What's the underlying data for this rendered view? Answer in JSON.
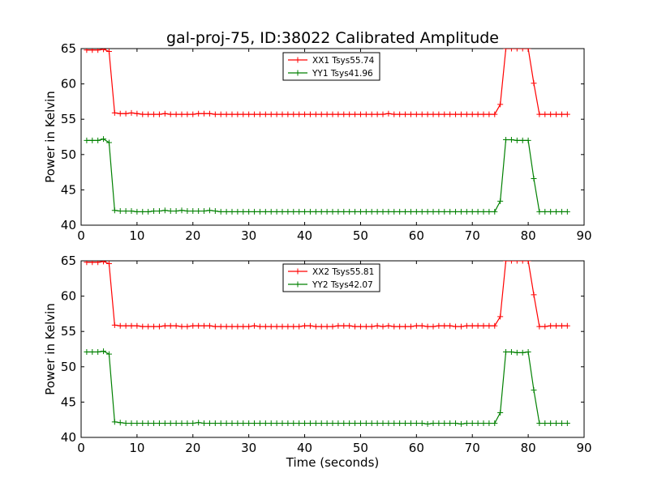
{
  "figure": {
    "title": "gal-proj-75, ID:38022 Calibrated Amplitude",
    "xlabel": "Time (seconds)"
  },
  "chart_data": [
    {
      "type": "line",
      "ylabel": "Power in Kelvin",
      "xlim": [
        0,
        90
      ],
      "ylim": [
        40,
        65
      ],
      "xticks": [
        0,
        10,
        20,
        30,
        40,
        50,
        60,
        70,
        80,
        90
      ],
      "yticks": [
        40,
        45,
        50,
        55,
        60,
        65
      ],
      "grid": false,
      "legend_position": "top-center",
      "x": [
        1,
        2,
        3,
        4,
        5,
        6,
        7,
        8,
        9,
        10,
        11,
        12,
        13,
        14,
        15,
        16,
        17,
        18,
        19,
        20,
        21,
        22,
        23,
        24,
        25,
        26,
        27,
        28,
        29,
        30,
        31,
        32,
        33,
        34,
        35,
        36,
        37,
        38,
        39,
        40,
        41,
        42,
        43,
        44,
        45,
        46,
        47,
        48,
        49,
        50,
        51,
        52,
        53,
        54,
        55,
        56,
        57,
        58,
        59,
        60,
        61,
        62,
        63,
        64,
        65,
        66,
        67,
        68,
        69,
        70,
        71,
        72,
        73,
        74,
        75,
        76,
        77,
        78,
        79,
        80,
        81,
        82,
        83,
        84,
        85,
        86,
        87
      ],
      "series": [
        {
          "name": "XX1 Tsys55.74",
          "color": "#ff0000",
          "values": [
            64.8,
            64.8,
            64.8,
            64.9,
            64.6,
            55.9,
            55.8,
            55.8,
            55.9,
            55.8,
            55.7,
            55.7,
            55.7,
            55.7,
            55.8,
            55.7,
            55.7,
            55.7,
            55.7,
            55.7,
            55.8,
            55.8,
            55.8,
            55.7,
            55.7,
            55.7,
            55.7,
            55.7,
            55.7,
            55.7,
            55.7,
            55.7,
            55.7,
            55.7,
            55.7,
            55.7,
            55.7,
            55.7,
            55.7,
            55.7,
            55.7,
            55.7,
            55.7,
            55.7,
            55.7,
            55.7,
            55.7,
            55.7,
            55.7,
            55.7,
            55.7,
            55.7,
            55.7,
            55.7,
            55.8,
            55.7,
            55.7,
            55.7,
            55.7,
            55.7,
            55.7,
            55.7,
            55.7,
            55.7,
            55.7,
            55.7,
            55.7,
            55.7,
            55.7,
            55.7,
            55.7,
            55.7,
            55.7,
            55.7,
            57.1,
            65.0,
            65.0,
            65.0,
            65.0,
            65.0,
            60.1,
            55.7,
            55.7,
            55.7,
            55.7,
            55.7,
            55.7
          ]
        },
        {
          "name": "YY1 Tsys41.96",
          "color": "#008000",
          "values": [
            52.0,
            52.0,
            52.0,
            52.2,
            51.7,
            42.1,
            42.0,
            42.0,
            42.0,
            41.9,
            41.9,
            41.9,
            42.0,
            42.0,
            42.1,
            42.0,
            42.0,
            42.1,
            42.0,
            42.0,
            42.0,
            42.0,
            42.1,
            42.0,
            41.9,
            41.9,
            41.9,
            41.9,
            41.9,
            41.9,
            41.9,
            41.9,
            41.9,
            41.9,
            41.9,
            41.9,
            41.9,
            41.9,
            41.9,
            41.9,
            41.9,
            41.9,
            41.9,
            41.9,
            41.9,
            41.9,
            41.9,
            41.9,
            41.9,
            41.9,
            41.9,
            41.9,
            41.9,
            41.9,
            41.9,
            41.9,
            41.9,
            41.9,
            41.9,
            41.9,
            41.9,
            41.9,
            41.9,
            41.9,
            41.9,
            41.9,
            41.9,
            41.9,
            41.9,
            41.9,
            41.9,
            41.9,
            41.9,
            41.9,
            43.4,
            52.1,
            52.1,
            52.0,
            52.0,
            52.0,
            46.6,
            41.9,
            41.9,
            41.9,
            41.9,
            41.9,
            41.9
          ]
        }
      ]
    },
    {
      "type": "line",
      "ylabel": "Power in Kelvin",
      "xlabel": "Time (seconds)",
      "xlim": [
        0,
        90
      ],
      "ylim": [
        40,
        65
      ],
      "xticks": [
        0,
        10,
        20,
        30,
        40,
        50,
        60,
        70,
        80,
        90
      ],
      "yticks": [
        40,
        45,
        50,
        55,
        60,
        65
      ],
      "grid": false,
      "legend_position": "top-center",
      "x": [
        1,
        2,
        3,
        4,
        5,
        6,
        7,
        8,
        9,
        10,
        11,
        12,
        13,
        14,
        15,
        16,
        17,
        18,
        19,
        20,
        21,
        22,
        23,
        24,
        25,
        26,
        27,
        28,
        29,
        30,
        31,
        32,
        33,
        34,
        35,
        36,
        37,
        38,
        39,
        40,
        41,
        42,
        43,
        44,
        45,
        46,
        47,
        48,
        49,
        50,
        51,
        52,
        53,
        54,
        55,
        56,
        57,
        58,
        59,
        60,
        61,
        62,
        63,
        64,
        65,
        66,
        67,
        68,
        69,
        70,
        71,
        72,
        73,
        74,
        75,
        76,
        77,
        78,
        79,
        80,
        81,
        82,
        83,
        84,
        85,
        86,
        87
      ],
      "series": [
        {
          "name": "XX2 Tsys55.81",
          "color": "#ff0000",
          "values": [
            64.8,
            64.8,
            64.8,
            64.9,
            64.6,
            55.9,
            55.8,
            55.8,
            55.8,
            55.8,
            55.7,
            55.7,
            55.7,
            55.7,
            55.8,
            55.8,
            55.8,
            55.7,
            55.7,
            55.8,
            55.8,
            55.8,
            55.8,
            55.7,
            55.7,
            55.7,
            55.7,
            55.7,
            55.7,
            55.7,
            55.8,
            55.7,
            55.7,
            55.7,
            55.7,
            55.7,
            55.7,
            55.7,
            55.7,
            55.8,
            55.8,
            55.7,
            55.7,
            55.7,
            55.7,
            55.8,
            55.8,
            55.8,
            55.7,
            55.7,
            55.7,
            55.7,
            55.8,
            55.7,
            55.8,
            55.7,
            55.7,
            55.7,
            55.7,
            55.8,
            55.8,
            55.7,
            55.7,
            55.8,
            55.8,
            55.8,
            55.7,
            55.7,
            55.8,
            55.8,
            55.8,
            55.8,
            55.8,
            55.8,
            57.1,
            65.0,
            65.0,
            65.0,
            65.0,
            65.0,
            60.2,
            55.7,
            55.7,
            55.8,
            55.8,
            55.8,
            55.8
          ]
        },
        {
          "name": "YY2 Tsys42.07",
          "color": "#008000",
          "values": [
            52.1,
            52.1,
            52.1,
            52.2,
            51.8,
            42.2,
            42.1,
            42.0,
            42.0,
            42.0,
            42.0,
            42.0,
            42.0,
            42.0,
            42.0,
            42.0,
            42.0,
            42.0,
            42.0,
            42.0,
            42.1,
            42.0,
            42.0,
            42.0,
            42.0,
            42.0,
            42.0,
            42.0,
            42.0,
            42.0,
            42.0,
            42.0,
            42.0,
            42.0,
            42.0,
            42.0,
            42.0,
            42.0,
            42.0,
            42.0,
            42.0,
            42.0,
            42.0,
            42.0,
            42.0,
            42.0,
            42.0,
            42.0,
            42.0,
            42.0,
            42.0,
            42.0,
            42.0,
            42.0,
            42.0,
            42.0,
            42.0,
            42.0,
            42.0,
            42.0,
            42.0,
            41.9,
            42.0,
            42.0,
            42.0,
            42.0,
            42.0,
            41.9,
            42.0,
            42.0,
            42.0,
            42.0,
            42.0,
            42.0,
            43.5,
            52.1,
            52.1,
            52.0,
            52.0,
            52.1,
            46.7,
            42.0,
            42.0,
            42.0,
            42.0,
            42.0,
            42.0
          ]
        }
      ]
    }
  ]
}
